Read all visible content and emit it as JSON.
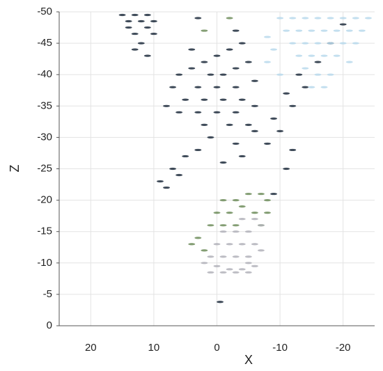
{
  "chart_data": {
    "type": "scatter",
    "x_label": "X",
    "y_label": "Z",
    "xlim": [
      25,
      -25
    ],
    "ylim": [
      0,
      -50
    ],
    "xticks": [
      20,
      10,
      0,
      -10,
      -20
    ],
    "yticks": [
      0,
      -5,
      -10,
      -15,
      -20,
      -25,
      -30,
      -35,
      -40,
      -45,
      -50
    ],
    "grid": true,
    "series": [
      {
        "color": "#1d2b3c",
        "x": [
          15,
          13,
          11,
          14,
          12,
          10,
          14,
          11,
          13,
          10,
          12,
          13,
          11,
          6,
          4,
          2,
          0,
          -2,
          -4,
          -3,
          1,
          -1,
          -3,
          -5,
          3,
          0,
          -3,
          -6,
          5,
          2,
          -1,
          -4,
          6,
          3,
          0,
          -3,
          -6,
          2,
          -2,
          -5,
          1,
          -3,
          -6,
          3,
          5,
          7,
          9,
          8,
          6,
          -1,
          -4,
          -8,
          -10,
          -12,
          -14,
          -16,
          -18,
          -20,
          -13,
          -11,
          -9,
          -11,
          -9,
          8,
          7,
          4,
          3,
          -12,
          -0.5
        ],
        "y": [
          -49.5,
          -49.5,
          -49.5,
          -48.5,
          -48.5,
          -48.5,
          -47.5,
          -47.5,
          -46.5,
          -46.5,
          -45,
          -44,
          -43,
          -40,
          -41,
          -42,
          -43,
          -44,
          -45,
          -47,
          -40,
          -40,
          -41,
          -42,
          -38,
          -38,
          -38,
          -39,
          -36,
          -36,
          -36,
          -36,
          -34,
          -34,
          -34,
          -34,
          -35,
          -32,
          -32,
          -32,
          -30,
          -29,
          -31,
          -28,
          -27,
          -25,
          -23,
          -22,
          -24,
          -26,
          -27,
          -29,
          -31,
          -35,
          -38,
          -42,
          -45,
          -48,
          -40,
          -37,
          -33,
          -25,
          -21,
          -35,
          -38,
          -44,
          -49,
          -28,
          -3.8
        ]
      },
      {
        "color": "#b9d9ec",
        "x": [
          -10,
          -12,
          -14,
          -16,
          -18,
          -20,
          -22,
          -24,
          -11,
          -13,
          -15,
          -17,
          -19,
          -21,
          -23,
          -12,
          -14,
          -16,
          -18,
          -20,
          -22,
          -13,
          -15,
          -17,
          -19,
          -21,
          -14,
          -16,
          -18,
          -15,
          -17,
          -8,
          -9,
          -8,
          -10
        ],
        "y": [
          -49,
          -49,
          -49,
          -49,
          -49,
          -49,
          -49,
          -49,
          -47,
          -47,
          -47,
          -47,
          -47,
          -47,
          -47,
          -45,
          -45,
          -45,
          -45,
          -45,
          -45,
          -43,
          -43,
          -43,
          -43,
          -42,
          -41,
          -40,
          -40,
          -38,
          -38,
          -46,
          -44,
          -42,
          -40
        ]
      },
      {
        "color": "#6f8d5c",
        "x": [
          -1,
          -3,
          -5,
          -7,
          -8,
          0,
          -2,
          -4,
          -6,
          1,
          -1,
          -3,
          -7,
          3,
          2,
          4,
          -8,
          -2,
          2
        ],
        "y": [
          -20,
          -20,
          -21,
          -21,
          -20,
          -18,
          -18,
          -19,
          -18,
          -16,
          -16,
          -16,
          -16,
          -14,
          -12,
          -13,
          -18,
          -49,
          -47
        ]
      },
      {
        "color": "#b2b2ba",
        "x": [
          -1,
          -3,
          -5,
          -7,
          0,
          -2,
          -4,
          -6,
          1,
          -1,
          -3,
          -5,
          -7,
          2,
          0,
          -2,
          -4,
          -5,
          1,
          -1,
          -3,
          -5,
          -6,
          -4,
          -6
        ],
        "y": [
          -15,
          -15,
          -15,
          -16,
          -13,
          -13,
          -13,
          -13,
          -11,
          -11,
          -11,
          -11,
          -12,
          -10,
          -9.5,
          -9,
          -9,
          -10,
          -8.5,
          -8.5,
          -8.5,
          -8.5,
          -9.5,
          -17,
          -17
        ]
      }
    ]
  }
}
